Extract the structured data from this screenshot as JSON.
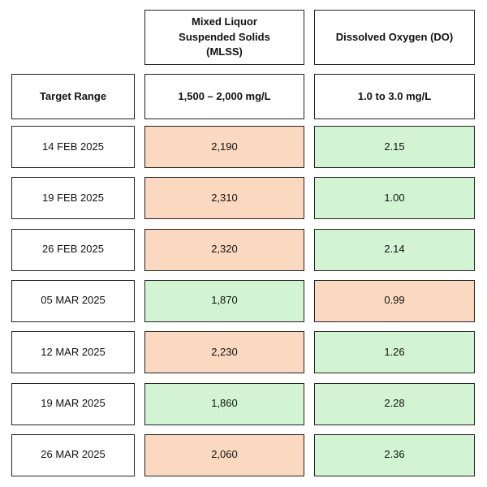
{
  "table": {
    "headers": [
      "Mixed Liquor Suspended Solids (MLSS)",
      "Dissolved Oxygen (DO)"
    ],
    "target": {
      "label": "Target Range",
      "values": [
        "1,500 – 2,000 mg/L",
        "1.0 to 3.0 mg/L"
      ]
    },
    "rows": [
      {
        "date": "14 FEB 2025",
        "cells": [
          {
            "text": "2,190",
            "color": "#fbd9c1"
          },
          {
            "text": "2.15",
            "color": "#d2f4d2"
          }
        ]
      },
      {
        "date": "19 FEB 2025",
        "cells": [
          {
            "text": "2,310",
            "color": "#fbd9c1"
          },
          {
            "text": "1.00",
            "color": "#d2f4d2"
          }
        ]
      },
      {
        "date": "26 FEB 2025",
        "cells": [
          {
            "text": "2,320",
            "color": "#fbd9c1"
          },
          {
            "text": "2.14",
            "color": "#d2f4d2"
          }
        ]
      },
      {
        "date": "05 MAR 2025",
        "cells": [
          {
            "text": "1,870",
            "color": "#d2f4d2"
          },
          {
            "text": "0.99",
            "color": "#fbd9c1"
          }
        ]
      },
      {
        "date": "12 MAR 2025",
        "cells": [
          {
            "text": "2,230",
            "color": "#fbd9c1"
          },
          {
            "text": "1.26",
            "color": "#d2f4d2"
          }
        ]
      },
      {
        "date": "19 MAR 2025",
        "cells": [
          {
            "text": "1,860",
            "color": "#d2f4d2"
          },
          {
            "text": "2.28",
            "color": "#d2f4d2"
          }
        ]
      },
      {
        "date": "26 MAR 2025",
        "cells": [
          {
            "text": "2,060",
            "color": "#fbd9c1"
          },
          {
            "text": "2.36",
            "color": "#d2f4d2"
          }
        ]
      }
    ]
  }
}
